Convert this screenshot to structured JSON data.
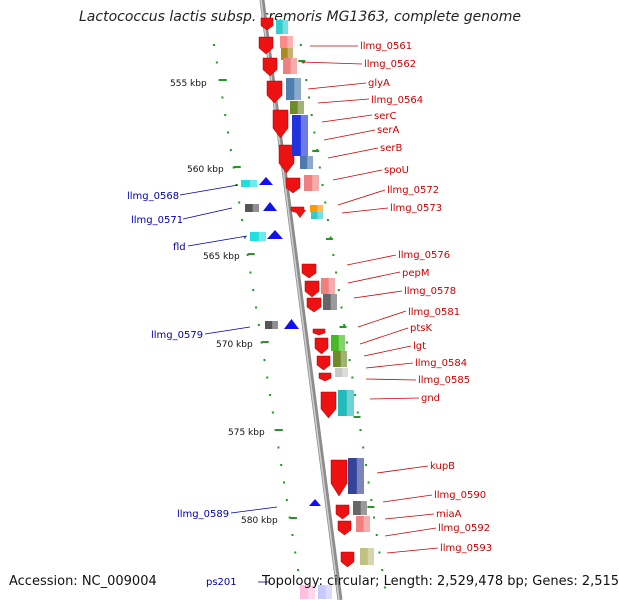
{
  "title": "Lactococcus lactis subsp. cremoris MG1363, complete genome",
  "footer": {
    "accession": "Accession: NC_009004",
    "topology": "Topology: circular; Length: 2,529,478 bp; Genes: 2,515"
  },
  "colors": {
    "backbone": "#a0a0a0",
    "forward_label": "#cc0000",
    "reverse_label": "#0000aa",
    "forward_cds": "#ee1111",
    "reverse_cds": "#1111ee",
    "tick": "#229922"
  },
  "scale_labels": [
    "555 kbp",
    "560 kbp",
    "565 kbp",
    "570 kbp",
    "575 kbp",
    "580 kbp"
  ],
  "right_labels": [
    "llmg_0561",
    "llmg_0562",
    "glyA",
    "llmg_0564",
    "serC",
    "serA",
    "serB",
    "spoU",
    "llmg_0572",
    "llmg_0573",
    "llmg_0576",
    "pepM",
    "llmg_0578",
    "llmg_0581",
    "ptsK",
    "lgt",
    "llmg_0584",
    "llmg_0585",
    "gnd",
    "kupB",
    "llmg_0590",
    "miaA",
    "llmg_0592",
    "llmg_0593"
  ],
  "left_labels": [
    "llmg_0568",
    "llmg_0571",
    "fld",
    "llmg_0579",
    "llmg_0589",
    "ps201"
  ]
}
